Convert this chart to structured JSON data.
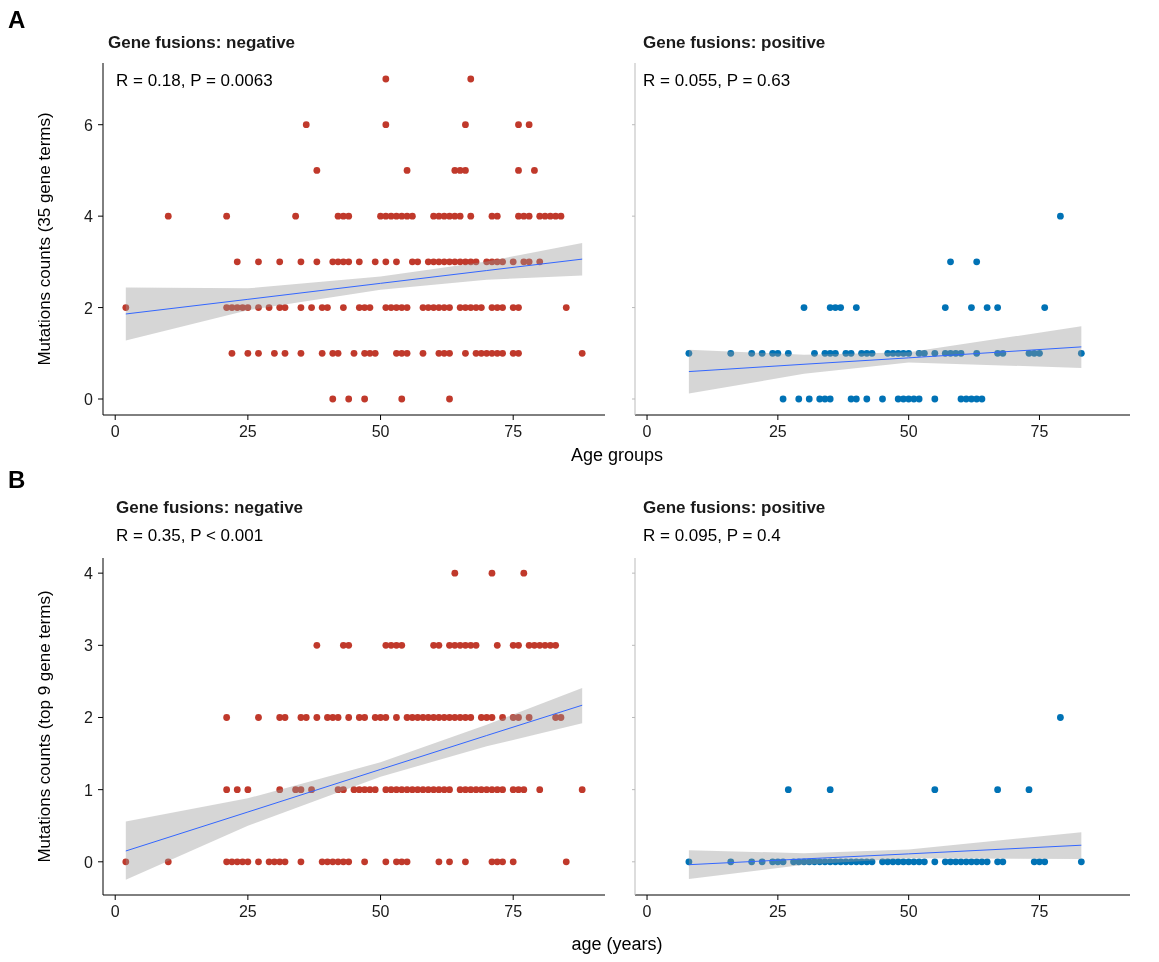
{
  "chart_data": [
    {
      "type": "scatter",
      "title": "Gene fusions: negative",
      "xlabel": "Age groups",
      "ylabel": "Mutations counts (35 gene terms)",
      "annotations": [
        "A",
        "R = 0.18, P = 0.0063"
      ],
      "xlim": [
        -2.3,
        92.3
      ],
      "xticks": [
        0,
        25,
        50,
        75
      ],
      "ylim": [
        -0.35,
        7.35
      ],
      "yticks": [
        0,
        2,
        4,
        6
      ],
      "marker": "circle",
      "series": [
        {
          "color": "#c0392b",
          "x": [
            51,
            67
          ],
          "values": [
            7,
            7
          ]
        },
        {
          "color": "#c0392b",
          "x": [
            36,
            51,
            66,
            76,
            78
          ],
          "values": [
            6,
            6,
            6,
            6,
            6
          ]
        },
        {
          "color": "#c0392b",
          "x": [
            38,
            55,
            64,
            65,
            66,
            76,
            79
          ],
          "values": [
            5,
            5,
            5,
            5,
            5,
            5,
            5
          ]
        },
        {
          "color": "#c0392b",
          "x": [
            10,
            21,
            34,
            42,
            43,
            44,
            50,
            51,
            52,
            53,
            54,
            55,
            56,
            60,
            61,
            62,
            63,
            64,
            65,
            67,
            71,
            72,
            76,
            77,
            78,
            80,
            81,
            82,
            83,
            84
          ],
          "values": [
            4,
            4,
            4,
            4,
            4,
            4,
            4,
            4,
            4,
            4,
            4,
            4,
            4,
            4,
            4,
            4,
            4,
            4,
            4,
            4,
            4,
            4,
            4,
            4,
            4,
            4,
            4,
            4,
            4,
            4
          ]
        },
        {
          "color": "#c0392b",
          "x": [
            23,
            27,
            31,
            35,
            38,
            41,
            42,
            43,
            44,
            46,
            49,
            51,
            53,
            56,
            57,
            59,
            60,
            61,
            62,
            63,
            64,
            65,
            66,
            67,
            68,
            70,
            71,
            72,
            73,
            75,
            77,
            78,
            80
          ],
          "values": [
            3,
            3,
            3,
            3,
            3,
            3,
            3,
            3,
            3,
            3,
            3,
            3,
            3,
            3,
            3,
            3,
            3,
            3,
            3,
            3,
            3,
            3,
            3,
            3,
            3,
            3,
            3,
            3,
            3,
            3,
            3,
            3,
            3
          ]
        },
        {
          "color": "#c0392b",
          "x": [
            2,
            21,
            22,
            23,
            24,
            25,
            27,
            29,
            31,
            32,
            35,
            37,
            39,
            40,
            43,
            46,
            47,
            48,
            51,
            52,
            53,
            54,
            55,
            58,
            59,
            60,
            61,
            62,
            63,
            65,
            66,
            67,
            68,
            69,
            71,
            72,
            73,
            75,
            76,
            85
          ],
          "values": [
            2,
            2,
            2,
            2,
            2,
            2,
            2,
            2,
            2,
            2,
            2,
            2,
            2,
            2,
            2,
            2,
            2,
            2,
            2,
            2,
            2,
            2,
            2,
            2,
            2,
            2,
            2,
            2,
            2,
            2,
            2,
            2,
            2,
            2,
            2,
            2,
            2,
            2,
            2,
            2
          ]
        },
        {
          "color": "#c0392b",
          "x": [
            22,
            25,
            27,
            30,
            32,
            35,
            39,
            41,
            42,
            45,
            47,
            48,
            49,
            53,
            54,
            55,
            58,
            61,
            62,
            63,
            66,
            68,
            69,
            70,
            71,
            72,
            73,
            75,
            76,
            88
          ],
          "values": [
            1,
            1,
            1,
            1,
            1,
            1,
            1,
            1,
            1,
            1,
            1,
            1,
            1,
            1,
            1,
            1,
            1,
            1,
            1,
            1,
            1,
            1,
            1,
            1,
            1,
            1,
            1,
            1,
            1,
            1
          ]
        },
        {
          "color": "#c0392b",
          "x": [
            41,
            44,
            47,
            54,
            63
          ],
          "values": [
            0,
            0,
            0,
            0,
            0
          ]
        },
        {
          "type": "line",
          "marker": "none",
          "color": "#3366ff",
          "x": [
            2,
            25,
            50,
            70,
            88
          ],
          "values": [
            1.86,
            2.18,
            2.53,
            2.81,
            3.06
          ],
          "lower": [
            1.28,
            1.94,
            2.39,
            2.61,
            2.7
          ],
          "upper": [
            2.44,
            2.42,
            2.68,
            3.01,
            3.41
          ]
        }
      ]
    },
    {
      "type": "scatter",
      "title": "Gene fusions: positive",
      "annotations": [
        "R = 0.055, P = 0.63"
      ],
      "xlim": [
        -2.3,
        92.3
      ],
      "xticks": [
        0,
        25,
        50,
        75
      ],
      "ylim": [
        -0.35,
        7.35
      ],
      "yticks": [
        0,
        2,
        4,
        6
      ],
      "tick_labels": "x",
      "marker": "circle",
      "series": [
        {
          "color": "#0072b5",
          "x": [
            79
          ],
          "values": [
            4
          ]
        },
        {
          "color": "#0072b5",
          "x": [
            58,
            63
          ],
          "values": [
            3,
            3
          ]
        },
        {
          "color": "#0072b5",
          "x": [
            30,
            35,
            36,
            37,
            40,
            57,
            62,
            65,
            67,
            76
          ],
          "values": [
            2,
            2,
            2,
            2,
            2,
            2,
            2,
            2,
            2,
            2
          ]
        },
        {
          "color": "#0072b5",
          "x": [
            8,
            16,
            20,
            22,
            24,
            25,
            27,
            32,
            34,
            35,
            36,
            38,
            39,
            41,
            42,
            43,
            46,
            47,
            48,
            49,
            50,
            52,
            53,
            55,
            57,
            58,
            59,
            60,
            63,
            67,
            68,
            73,
            74,
            75,
            83
          ],
          "values": [
            1,
            1,
            1,
            1,
            1,
            1,
            1,
            1,
            1,
            1,
            1,
            1,
            1,
            1,
            1,
            1,
            1,
            1,
            1,
            1,
            1,
            1,
            1,
            1,
            1,
            1,
            1,
            1,
            1,
            1,
            1,
            1,
            1,
            1,
            1
          ]
        },
        {
          "color": "#0072b5",
          "x": [
            26,
            29,
            31,
            33,
            34,
            35,
            39,
            40,
            42,
            45,
            48,
            49,
            50,
            51,
            52,
            55,
            60,
            61,
            62,
            63,
            64
          ],
          "values": [
            0,
            0,
            0,
            0,
            0,
            0,
            0,
            0,
            0,
            0,
            0,
            0,
            0,
            0,
            0,
            0,
            0,
            0,
            0,
            0,
            0
          ]
        },
        {
          "type": "line",
          "marker": "none",
          "color": "#3366ff",
          "x": [
            8,
            30,
            50,
            83
          ],
          "values": [
            0.6,
            0.76,
            0.9,
            1.14
          ],
          "lower": [
            0.12,
            0.55,
            0.8,
            0.68
          ],
          "upper": [
            1.08,
            0.97,
            1.02,
            1.59
          ]
        }
      ]
    },
    {
      "type": "scatter",
      "title": "Gene fusions: negative",
      "xlabel": "age (years)",
      "ylabel": "Mutations counts (top 9 gene terms)",
      "annotations": [
        "B",
        "R = 0.35, P < 0.001"
      ],
      "xlim": [
        -2.3,
        92.3
      ],
      "xticks": [
        0,
        25,
        50,
        75
      ],
      "ylim": [
        -0.46,
        4.21
      ],
      "yticks": [
        0,
        1,
        2,
        3,
        4
      ],
      "marker": "circle",
      "series": [
        {
          "color": "#c0392b",
          "x": [
            64,
            71,
            77
          ],
          "values": [
            4,
            4,
            4
          ]
        },
        {
          "color": "#c0392b",
          "x": [
            38,
            43,
            44,
            51,
            52,
            53,
            54,
            60,
            61,
            63,
            64,
            65,
            66,
            67,
            68,
            72,
            75,
            76,
            78,
            79,
            80,
            81,
            82,
            83
          ],
          "values": [
            3,
            3,
            3,
            3,
            3,
            3,
            3,
            3,
            3,
            3,
            3,
            3,
            3,
            3,
            3,
            3,
            3,
            3,
            3,
            3,
            3,
            3,
            3,
            3
          ]
        },
        {
          "color": "#c0392b",
          "x": [
            21,
            27,
            31,
            32,
            35,
            36,
            38,
            40,
            41,
            42,
            44,
            46,
            47,
            49,
            50,
            51,
            53,
            55,
            56,
            57,
            58,
            59,
            60,
            61,
            62,
            63,
            64,
            65,
            66,
            67,
            69,
            70,
            71,
            73,
            75,
            76,
            78,
            83,
            84
          ],
          "values": [
            2,
            2,
            2,
            2,
            2,
            2,
            2,
            2,
            2,
            2,
            2,
            2,
            2,
            2,
            2,
            2,
            2,
            2,
            2,
            2,
            2,
            2,
            2,
            2,
            2,
            2,
            2,
            2,
            2,
            2,
            2,
            2,
            2,
            2,
            2,
            2,
            2,
            2,
            2
          ]
        },
        {
          "color": "#c0392b",
          "x": [
            21,
            23,
            25,
            31,
            34,
            35,
            37,
            42,
            43,
            45,
            46,
            47,
            48,
            49,
            51,
            52,
            53,
            54,
            55,
            56,
            57,
            58,
            59,
            60,
            61,
            62,
            63,
            65,
            66,
            67,
            68,
            69,
            70,
            71,
            72,
            73,
            75,
            76,
            77,
            80,
            88
          ],
          "values": [
            1,
            1,
            1,
            1,
            1,
            1,
            1,
            1,
            1,
            1,
            1,
            1,
            1,
            1,
            1,
            1,
            1,
            1,
            1,
            1,
            1,
            1,
            1,
            1,
            1,
            1,
            1,
            1,
            1,
            1,
            1,
            1,
            1,
            1,
            1,
            1,
            1,
            1,
            1,
            1,
            1
          ]
        },
        {
          "color": "#c0392b",
          "x": [
            2,
            10,
            21,
            22,
            23,
            24,
            25,
            27,
            29,
            30,
            31,
            32,
            35,
            39,
            40,
            41,
            42,
            43,
            44,
            47,
            51,
            53,
            54,
            55,
            61,
            63,
            66,
            71,
            72,
            73,
            75,
            85
          ],
          "values": [
            0,
            0,
            0,
            0,
            0,
            0,
            0,
            0,
            0,
            0,
            0,
            0,
            0,
            0,
            0,
            0,
            0,
            0,
            0,
            0,
            0,
            0,
            0,
            0,
            0,
            0,
            0,
            0,
            0,
            0,
            0,
            0
          ]
        },
        {
          "type": "line",
          "marker": "none",
          "color": "#3366ff",
          "x": [
            2,
            25,
            50,
            70,
            88
          ],
          "values": [
            0.15,
            0.69,
            1.28,
            1.75,
            2.17
          ],
          "lower": [
            -0.25,
            0.5,
            1.18,
            1.6,
            1.92
          ],
          "upper": [
            0.56,
            0.88,
            1.38,
            1.9,
            2.41
          ]
        }
      ]
    },
    {
      "type": "scatter",
      "title": "Gene fusions: positive",
      "annotations": [
        "R = 0.095, P = 0.4"
      ],
      "xlim": [
        -2.3,
        92.3
      ],
      "xticks": [
        0,
        25,
        50,
        75
      ],
      "ylim": [
        -0.46,
        4.21
      ],
      "yticks": [
        0,
        1,
        2,
        3,
        4
      ],
      "tick_labels": "x",
      "marker": "circle",
      "series": [
        {
          "color": "#0072b5",
          "x": [
            79
          ],
          "values": [
            2
          ]
        },
        {
          "color": "#0072b5",
          "x": [
            27,
            35,
            55,
            67,
            73
          ],
          "values": [
            1,
            1,
            1,
            1,
            1
          ]
        },
        {
          "color": "#0072b5",
          "x": [
            8,
            16,
            20,
            22,
            24,
            25,
            26,
            28,
            29,
            30,
            31,
            32,
            33,
            34,
            35,
            36,
            37,
            38,
            39,
            40,
            41,
            42,
            43,
            45,
            46,
            47,
            48,
            49,
            50,
            51,
            52,
            53,
            55,
            57,
            58,
            59,
            60,
            61,
            62,
            63,
            64,
            65,
            67,
            68,
            74,
            75,
            76,
            83
          ],
          "values": [
            0,
            0,
            0,
            0,
            0,
            0,
            0,
            0,
            0,
            0,
            0,
            0,
            0,
            0,
            0,
            0,
            0,
            0,
            0,
            0,
            0,
            0,
            0,
            0,
            0,
            0,
            0,
            0,
            0,
            0,
            0,
            0,
            0,
            0,
            0,
            0,
            0,
            0,
            0,
            0,
            0,
            0,
            0,
            0,
            0,
            0,
            0,
            0
          ]
        },
        {
          "type": "line",
          "marker": "none",
          "color": "#3366ff",
          "x": [
            8,
            30,
            50,
            83
          ],
          "values": [
            -0.04,
            0.04,
            0.11,
            0.23
          ],
          "lower": [
            -0.24,
            -0.04,
            0.05,
            0.04
          ],
          "upper": [
            0.16,
            0.12,
            0.17,
            0.41
          ]
        }
      ]
    }
  ]
}
